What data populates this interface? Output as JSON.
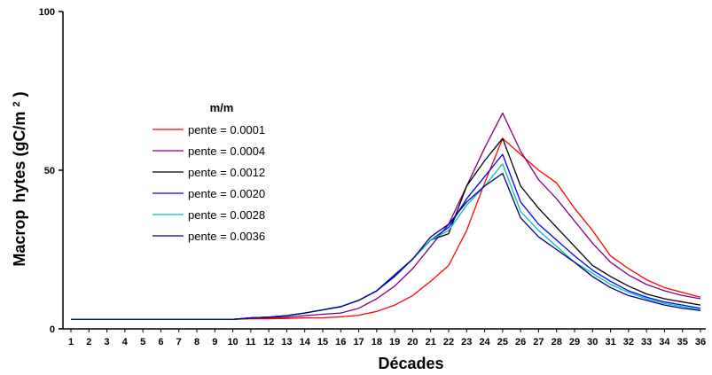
{
  "chart_data": {
    "type": "line",
    "title": "",
    "xlabel": "Décades",
    "ylabel": "Macrophytes (gC/m²)",
    "ylabel_segments": [
      "Macrop",
      "hytes (gC/m",
      "2",
      ")"
    ],
    "xlim": [
      1,
      36
    ],
    "ylim": [
      0,
      100
    ],
    "y_ticks": [
      0,
      50,
      100
    ],
    "grid": false,
    "legend": {
      "title": "m/m",
      "placement": "left-middle"
    },
    "x": [
      1,
      2,
      3,
      4,
      5,
      6,
      7,
      8,
      9,
      10,
      11,
      12,
      13,
      14,
      15,
      16,
      17,
      18,
      19,
      20,
      21,
      22,
      23,
      24,
      25,
      26,
      27,
      28,
      29,
      30,
      31,
      32,
      33,
      34,
      35,
      36
    ],
    "series": [
      {
        "name": "pente = 0.0001",
        "color": "#ff0000",
        "values": [
          3,
          3,
          3,
          3,
          3,
          3,
          3,
          3,
          3,
          3,
          3.2,
          3.2,
          3.3,
          3.5,
          3.5,
          3.8,
          4.3,
          5.5,
          7.5,
          10.5,
          15,
          20,
          31,
          46,
          60,
          55,
          50,
          46,
          38,
          31,
          23,
          19,
          15.5,
          13,
          11.5,
          10
        ]
      },
      {
        "name": "pente = 0.0004",
        "color": "#800080",
        "values": [
          3,
          3,
          3,
          3,
          3,
          3,
          3,
          3,
          3,
          3,
          3.3,
          3.5,
          3.7,
          4.2,
          4.6,
          5,
          6.5,
          9.5,
          13.5,
          19,
          26,
          33,
          45,
          57,
          68,
          56,
          47,
          41,
          34,
          27,
          21,
          17,
          14,
          12,
          10.5,
          9.5
        ]
      },
      {
        "name": "pente = 0.0012",
        "color": "#000000",
        "values": [
          3,
          3,
          3,
          3,
          3,
          3,
          3,
          3,
          3,
          3,
          3.5,
          3.7,
          4.2,
          5,
          6,
          7,
          9,
          12,
          17,
          22,
          28,
          30,
          45,
          53,
          60,
          45,
          38,
          32,
          26,
          20,
          16.5,
          13.5,
          11,
          9.5,
          8.5,
          7.5
        ]
      },
      {
        "name": "pente = 0.0020",
        "color": "#0000ff",
        "values": [
          3,
          3,
          3,
          3,
          3,
          3,
          3,
          3,
          3,
          3,
          3.5,
          3.7,
          4.2,
          5,
          6,
          7,
          9,
          12,
          16.5,
          22,
          28,
          32,
          41,
          48,
          55,
          40,
          33,
          28,
          23,
          18.5,
          15,
          12,
          10,
          8.5,
          7.5,
          6.5
        ]
      },
      {
        "name": "pente = 0.0028",
        "color": "#00c0c0",
        "values": [
          3,
          3,
          3,
          3,
          3,
          3,
          3,
          3,
          3,
          3,
          3.5,
          3.7,
          4.2,
          5,
          6,
          7,
          9,
          12,
          17,
          22,
          28,
          31,
          39,
          45,
          52,
          37,
          31,
          26,
          21,
          17.5,
          14,
          11.5,
          9.5,
          8,
          7,
          6
        ]
      },
      {
        "name": "pente = 0.0036",
        "color": "#000080",
        "values": [
          3,
          3,
          3,
          3,
          3,
          3,
          3,
          3,
          3,
          3,
          3.5,
          3.7,
          4.2,
          5,
          6,
          7,
          9,
          12,
          17,
          22,
          29,
          33,
          40,
          45,
          49,
          35,
          29,
          25,
          21,
          16.5,
          13,
          10.5,
          9,
          7.5,
          6.5,
          5.8
        ]
      }
    ]
  }
}
